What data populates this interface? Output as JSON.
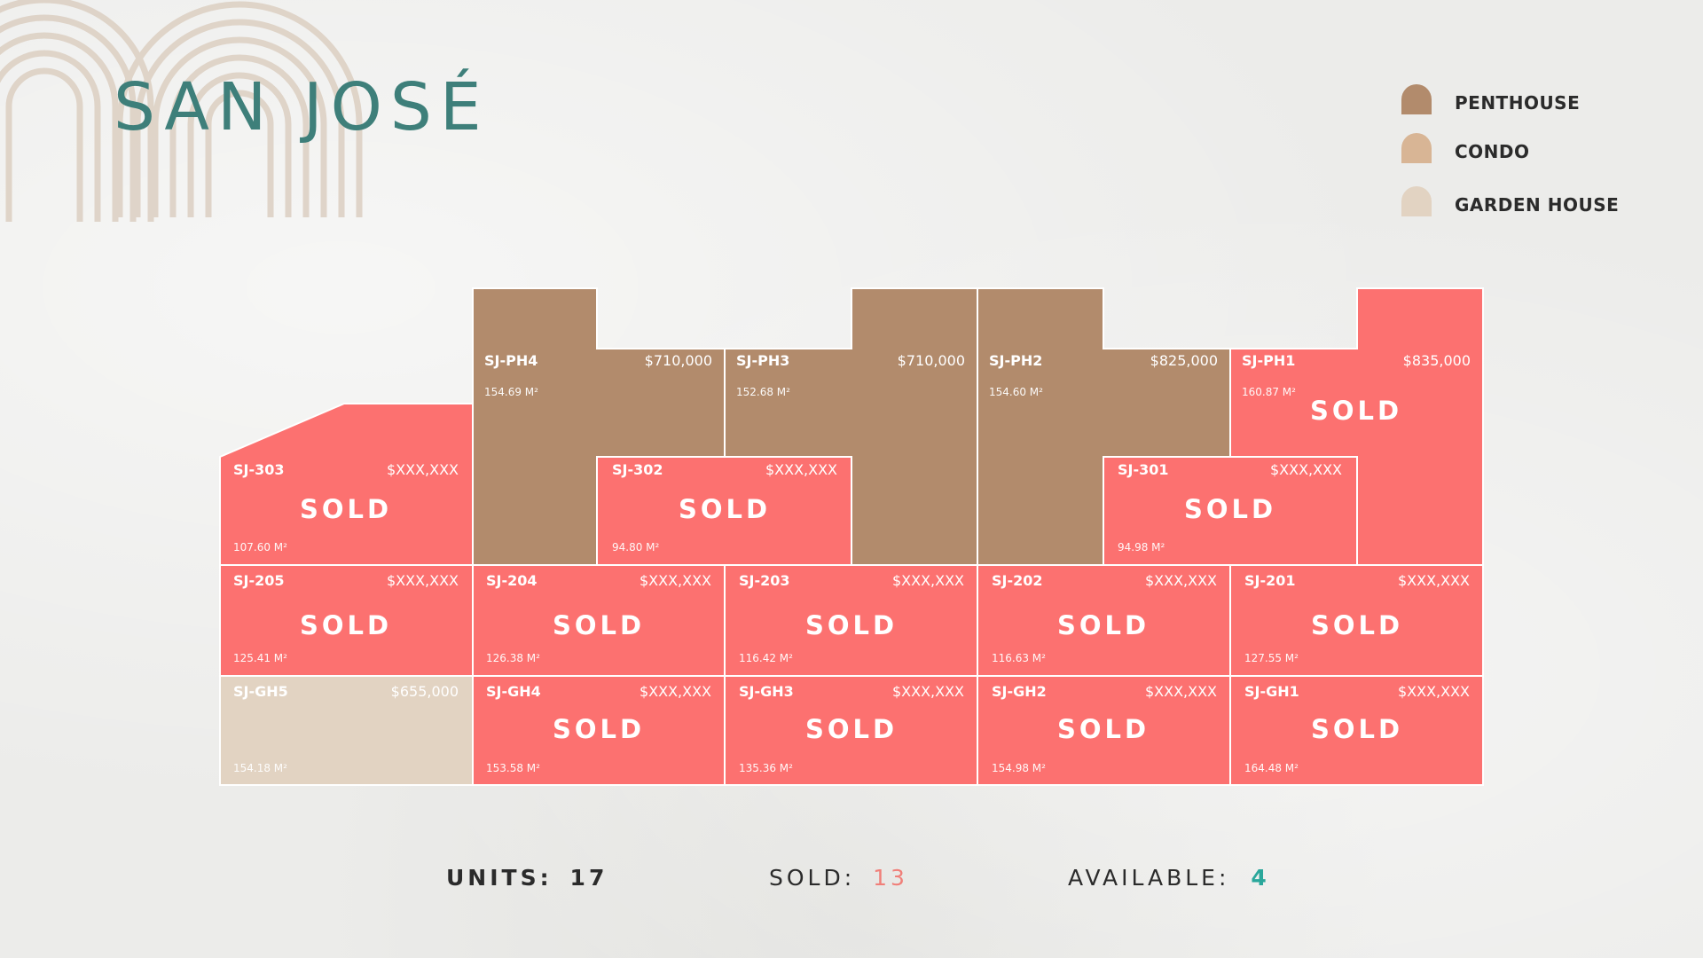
{
  "title": "SAN JOSÉ",
  "colors": {
    "penthouse": "#b28b6c",
    "condo": "#d8b595",
    "garden_house": "#e2d3c2",
    "sold": "#fc7170",
    "title": "#3e7f7a",
    "available": "#2aa79b",
    "sold_count": "#f07f79"
  },
  "legend": [
    {
      "label": "PENTHOUSE",
      "color": "#b28b6c"
    },
    {
      "label": "CONDO",
      "color": "#d8b595"
    },
    {
      "label": "GARDEN HOUSE",
      "color": "#e2d3c2"
    }
  ],
  "units": [
    {
      "id": "SJ-PH4",
      "price": "$710,000",
      "area": "154.69 M²",
      "status": "available",
      "type": "penthouse"
    },
    {
      "id": "SJ-PH3",
      "price": "$710,000",
      "area": "152.68 M²",
      "status": "available",
      "type": "penthouse"
    },
    {
      "id": "SJ-PH2",
      "price": "$825,000",
      "area": "154.60 M²",
      "status": "available",
      "type": "penthouse"
    },
    {
      "id": "SJ-PH1",
      "price": "$835,000",
      "area": "160.87 M²",
      "status": "sold",
      "type": "penthouse"
    },
    {
      "id": "SJ-303",
      "price": "$XXX,XXX",
      "area": "107.60 M²",
      "status": "sold",
      "type": "condo"
    },
    {
      "id": "SJ-302",
      "price": "$XXX,XXX",
      "area": "94.80 M²",
      "status": "sold",
      "type": "condo"
    },
    {
      "id": "SJ-301",
      "price": "$XXX,XXX",
      "area": "94.98 M²",
      "status": "sold",
      "type": "condo"
    },
    {
      "id": "SJ-205",
      "price": "$XXX,XXX",
      "area": "125.41 M²",
      "status": "sold",
      "type": "condo"
    },
    {
      "id": "SJ-204",
      "price": "$XXX,XXX",
      "area": "126.38 M²",
      "status": "sold",
      "type": "condo"
    },
    {
      "id": "SJ-203",
      "price": "$XXX,XXX",
      "area": "116.42 M²",
      "status": "sold",
      "type": "condo"
    },
    {
      "id": "SJ-202",
      "price": "$XXX,XXX",
      "area": "116.63 M²",
      "status": "sold",
      "type": "condo"
    },
    {
      "id": "SJ-201",
      "price": "$XXX,XXX",
      "area": "127.55 M²",
      "status": "sold",
      "type": "condo"
    },
    {
      "id": "SJ-GH5",
      "price": "$655,000",
      "area": "154.18 M²",
      "status": "available",
      "type": "garden_house"
    },
    {
      "id": "SJ-GH4",
      "price": "$XXX,XXX",
      "area": "153.58 M²",
      "status": "sold",
      "type": "garden_house"
    },
    {
      "id": "SJ-GH3",
      "price": "$XXX,XXX",
      "area": "135.36 M²",
      "status": "sold",
      "type": "garden_house"
    },
    {
      "id": "SJ-GH2",
      "price": "$XXX,XXX",
      "area": "154.98 M²",
      "status": "sold",
      "type": "garden_house"
    },
    {
      "id": "SJ-GH1",
      "price": "$XXX,XXX",
      "area": "164.48 M²",
      "status": "sold",
      "type": "garden_house"
    }
  ],
  "sold_label": "SOLD",
  "summary": {
    "units_label": "UNITS:",
    "units_value": "17",
    "sold_label": "SOLD:",
    "sold_value": "13",
    "available_label": "AVAILABLE:",
    "available_value": "4"
  }
}
